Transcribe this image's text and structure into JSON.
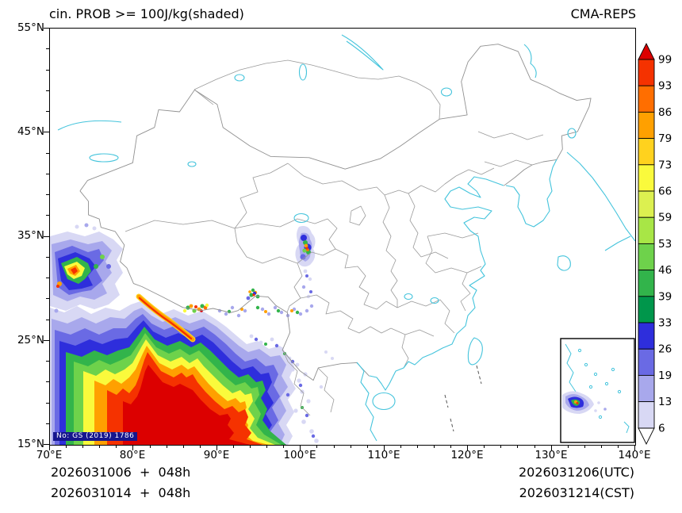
{
  "header": {
    "title": "cin. PROB >= 100J/kg(shaded)",
    "model": "CMA-REPS"
  },
  "axes": {
    "lon_labels": [
      "70°E",
      "80°E",
      "90°E",
      "100°E",
      "110°E",
      "120°E",
      "130°E",
      "140°E"
    ],
    "lat_labels": [
      "55°N",
      "45°N",
      "35°N",
      "25°N",
      "15°N"
    ]
  },
  "colorbar": {
    "labels": [
      "99",
      "93",
      "86",
      "79",
      "73",
      "66",
      "59",
      "53",
      "46",
      "39",
      "33",
      "26",
      "19",
      "13",
      "6"
    ],
    "levels": [
      6,
      13,
      19,
      26,
      33,
      39,
      46,
      53,
      59,
      66,
      73,
      79,
      86,
      93,
      99
    ],
    "over_color": "#DC0000",
    "under_color": "#FFFFFF",
    "seg_colors": [
      "#F53200",
      "#FF6E00",
      "#FFA000",
      "#FFD21E",
      "#FAFA3C",
      "#DCF050",
      "#A8E646",
      "#6ED24B",
      "#32B44B",
      "#00964B",
      "#2E2EDC",
      "#6A6AE4",
      "#A8A8EC",
      "#D8D8F4"
    ]
  },
  "map": {
    "watermark": "No: GS (2019) 1786",
    "coast_color": "#45C4DC",
    "border_color": "#909090"
  },
  "footer": {
    "left_line1": "2026031006  +  048h",
    "left_line2": "2026031014  +  048h",
    "right_line1": "2026031206(UTC)",
    "right_line2": "2026031214(CST)"
  }
}
